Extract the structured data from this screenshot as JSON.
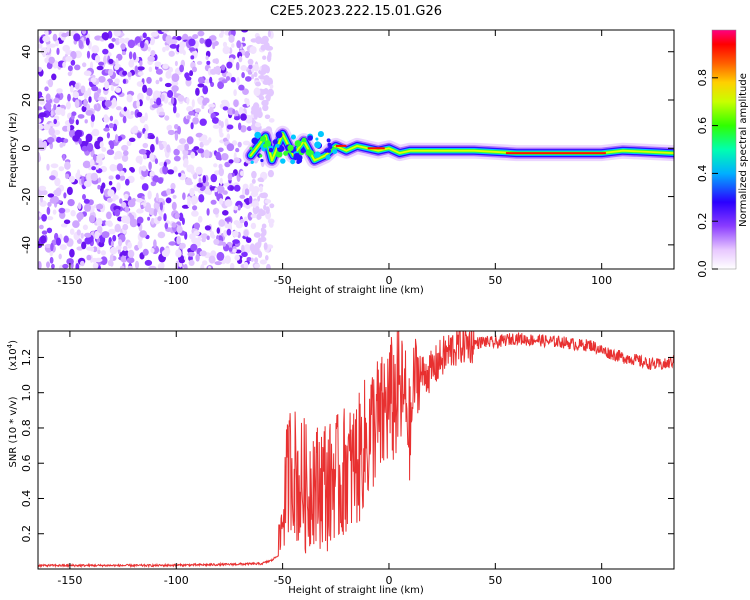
{
  "title": "C2E5.2023.222.15.01.G26",
  "chart_data": [
    {
      "type": "heatmap",
      "xlabel": "Height of straight line (km)",
      "ylabel": "Frequency (Hz)",
      "xlim": [
        -165,
        134
      ],
      "ylim": [
        -50,
        49
      ],
      "xticks": [
        -150,
        -100,
        -50,
        0,
        50,
        100
      ],
      "yticks": [
        -40,
        -20,
        0,
        20,
        40
      ],
      "signal_track": {
        "description_points_x": [
          -65,
          -58,
          -55,
          -50,
          -45,
          -40,
          -35,
          -30,
          -25,
          -20,
          -15,
          -10,
          -5,
          0,
          5,
          10,
          20,
          40,
          60,
          80,
          100,
          110,
          134
        ],
        "frequency_hz": [
          -3,
          5,
          -5,
          6,
          -3,
          3,
          -5,
          -3,
          1,
          -1,
          1,
          0,
          -1,
          0,
          -2,
          -1,
          -1,
          -1,
          -2,
          -2,
          -2,
          -1,
          -2
        ]
      },
      "noise_region_x": [
        -165,
        -65
      ],
      "colorbar": {
        "label": "Normalized spectral amplitude",
        "range": [
          0,
          1
        ],
        "ticks": [
          0.0,
          0.2,
          0.4,
          0.6,
          0.8
        ],
        "tick_labels": [
          "0.0",
          "0.2",
          "0.4",
          "0.6",
          "0.8"
        ]
      }
    },
    {
      "type": "line",
      "xlabel": "Height of straight line (km)",
      "ylabel": "SNR (10 * v/v)",
      "scale_label": "(x10",
      "scale_exponent": "4",
      "scale_suffix": ")",
      "xlim": [
        -165,
        134
      ],
      "ylim": [
        0,
        1.35
      ],
      "xticks": [
        -150,
        -100,
        -50,
        0,
        50,
        100
      ],
      "yticks": [
        0.2,
        0.4,
        0.6,
        0.8,
        1.0,
        1.2
      ],
      "ytick_labels": [
        "0.2",
        "0.4",
        "0.6",
        "0.8",
        "1.0",
        "1.2"
      ],
      "series": [
        {
          "color": "#e83030",
          "x": [
            -165,
            -140,
            -110,
            -80,
            -60,
            -55,
            -52,
            -50,
            -48,
            -46,
            -44,
            -42,
            -40,
            -38,
            -36,
            -34,
            -32,
            -30,
            -28,
            -26,
            -24,
            -22,
            -20,
            -18,
            -16,
            -14,
            -12,
            -10,
            -8,
            -6,
            -4,
            -2,
            0,
            2,
            5,
            8,
            10,
            12,
            15,
            20,
            25,
            30,
            35,
            40,
            45,
            50,
            55,
            60,
            65,
            70,
            75,
            80,
            85,
            90,
            95,
            100,
            105,
            110,
            115,
            120,
            125,
            130,
            134
          ],
          "values": [
            0.02,
            0.02,
            0.02,
            0.025,
            0.03,
            0.05,
            0.08,
            0.3,
            0.5,
            0.6,
            0.55,
            0.45,
            0.5,
            0.4,
            0.55,
            0.45,
            0.5,
            0.5,
            0.45,
            0.55,
            0.5,
            0.5,
            0.6,
            0.55,
            0.6,
            0.62,
            0.7,
            0.72,
            0.8,
            0.85,
            0.82,
            0.9,
            0.95,
            0.95,
            1.0,
            0.95,
            0.75,
            1.1,
            1.1,
            1.12,
            1.2,
            1.25,
            1.28,
            1.28,
            1.29,
            1.28,
            1.3,
            1.31,
            1.3,
            1.3,
            1.29,
            1.29,
            1.28,
            1.27,
            1.27,
            1.24,
            1.22,
            1.2,
            1.19,
            1.17,
            1.16,
            1.16,
            1.18
          ]
        }
      ]
    }
  ]
}
